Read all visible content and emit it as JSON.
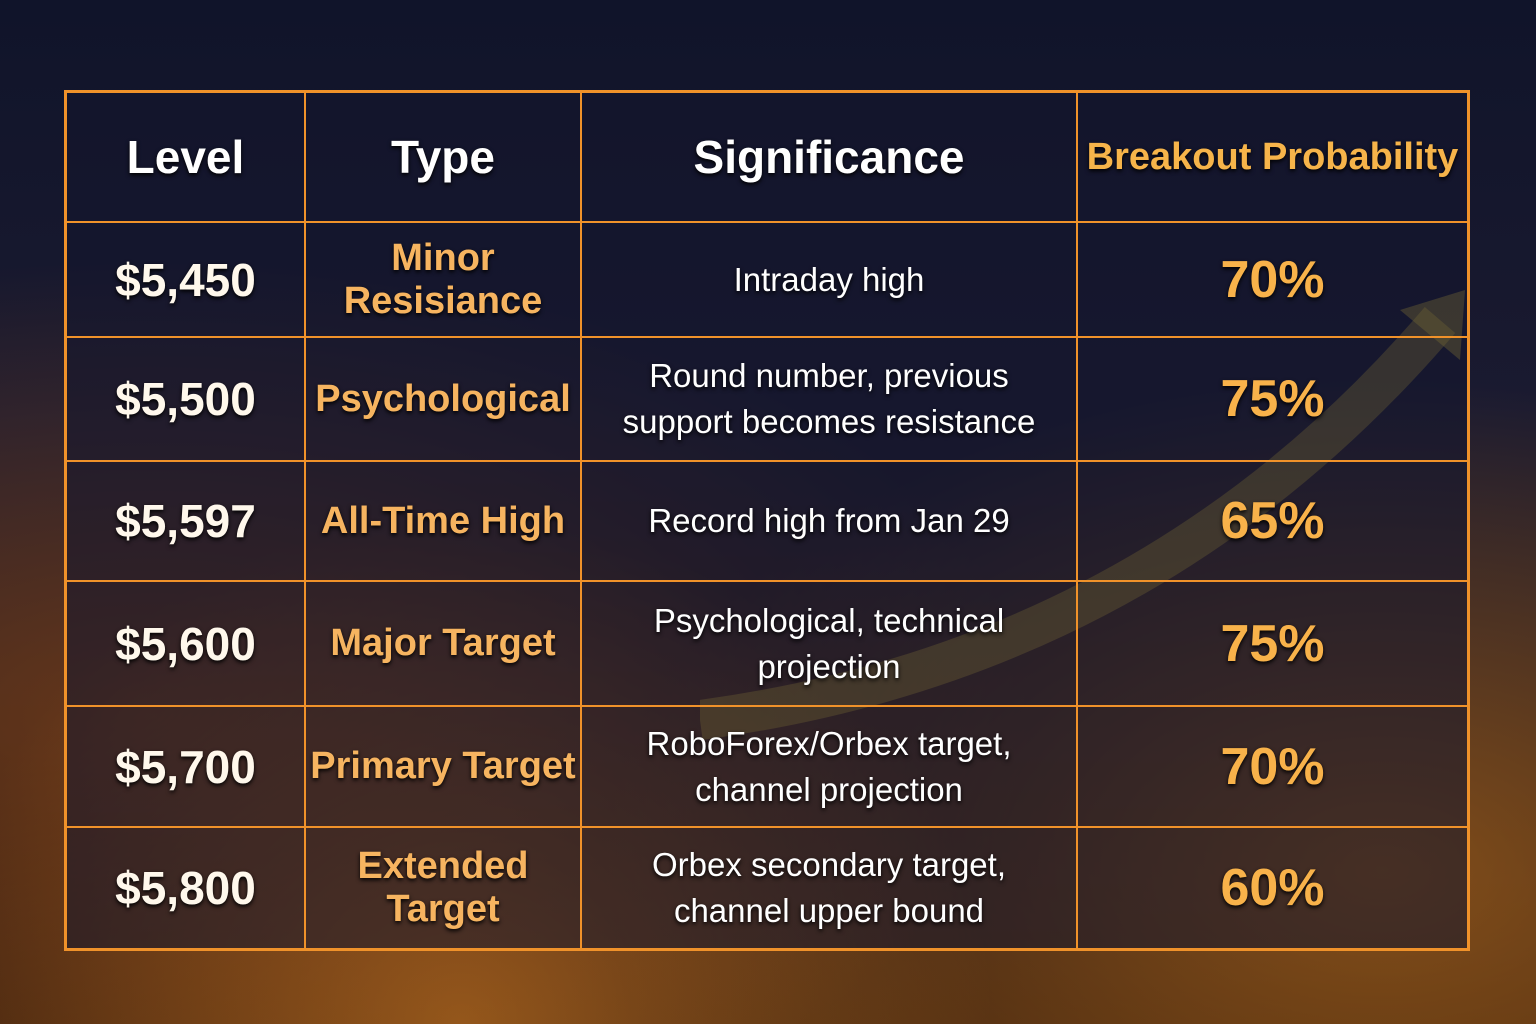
{
  "headers": [
    "Level",
    "Type",
    "Significance",
    "Breakout Probability"
  ],
  "rows": [
    {
      "level": "$5,450",
      "type": "Minor Resisiance",
      "significance": "Intraday high",
      "probability": "70%"
    },
    {
      "level": "$5,500",
      "type": "Psychological",
      "significance": "Round number, previous support becomes resistance",
      "probability": "75%"
    },
    {
      "level": "$5,597",
      "type": "All-Time High",
      "significance": "Record high from Jan 29",
      "probability": "65%"
    },
    {
      "level": "$5,600",
      "type": "Major Target",
      "significance": "Psychological, technical projection",
      "probability": "75%"
    },
    {
      "level": "$5,700",
      "type": "Primary Target",
      "significance": "RoboForex/Orbex target, channel projection",
      "probability": "70%"
    },
    {
      "level": "$5,800",
      "type": "Extended Target",
      "significance": "Orbex secondary target, channel upper bound",
      "probability": "60%"
    }
  ],
  "colors": {
    "border": "#f0922a",
    "accent": "#f6b44a"
  }
}
